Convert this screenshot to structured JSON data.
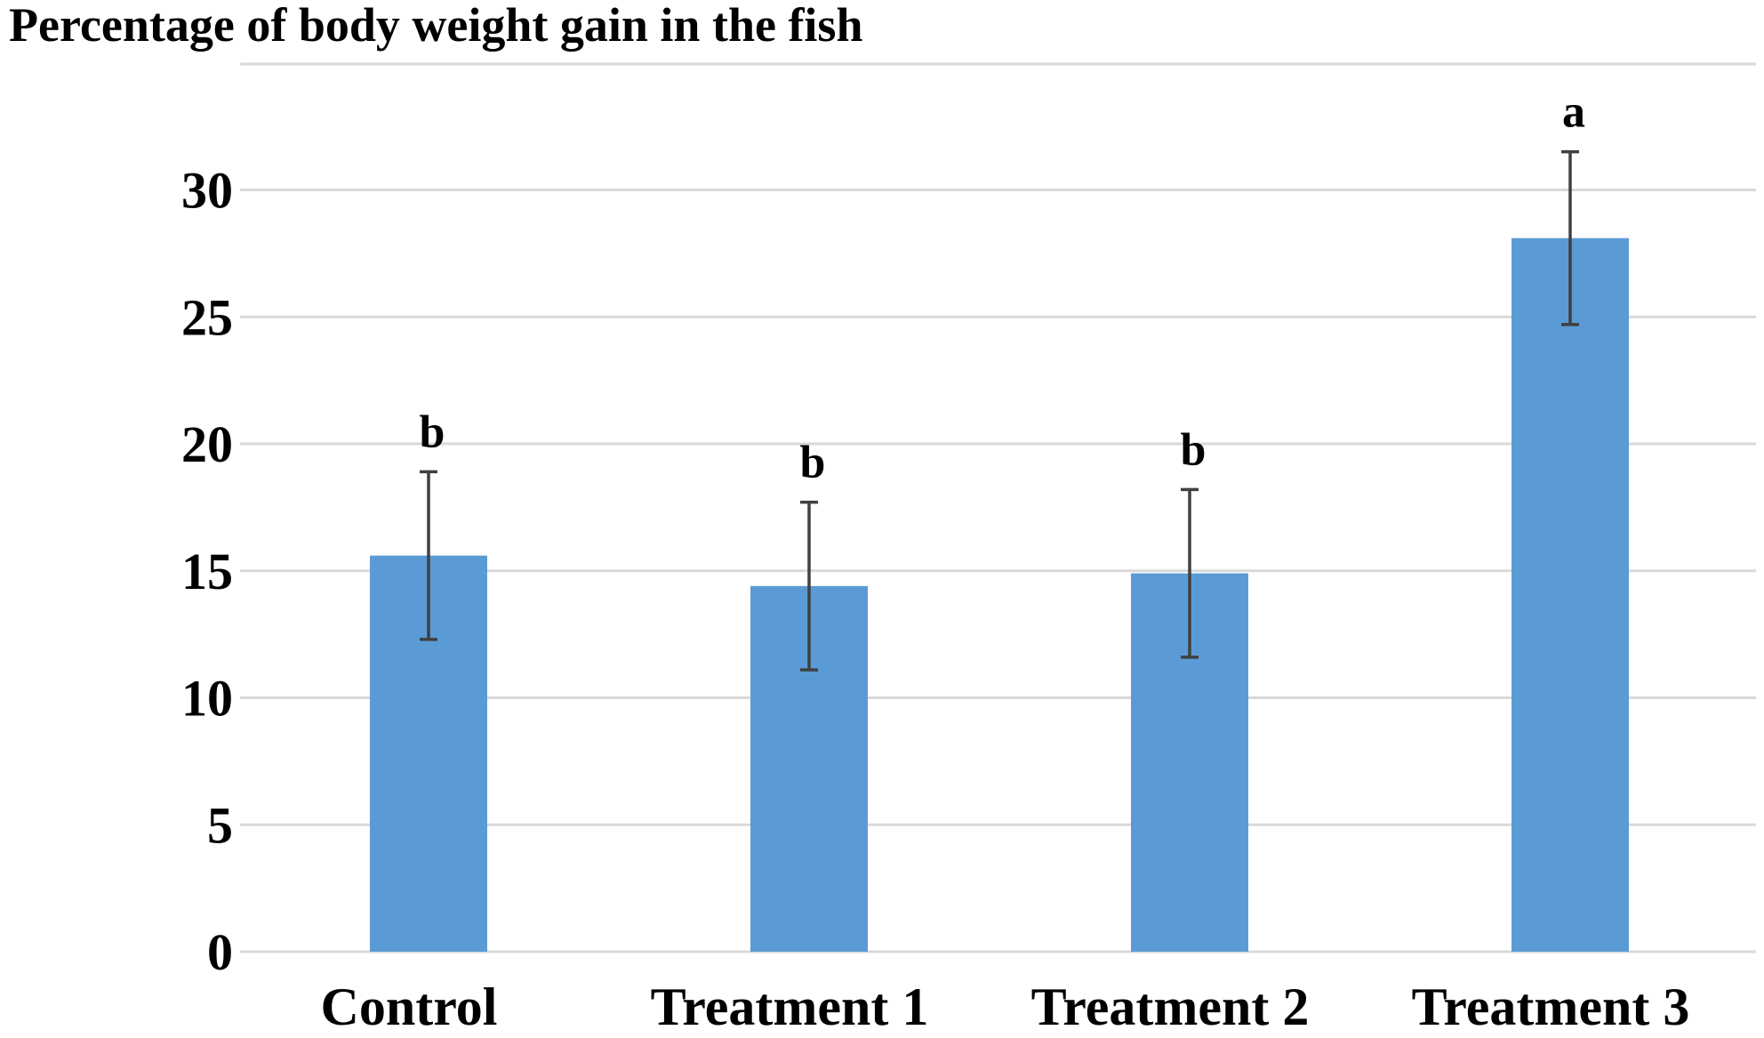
{
  "chart_data": {
    "type": "bar",
    "title": "Percentage of body weight gain in the fish",
    "xlabel": "",
    "ylabel": "",
    "categories": [
      "Control",
      "Treatment 1",
      "Treatment 2",
      "Treatment 3"
    ],
    "values": [
      15.6,
      14.4,
      14.9,
      28.1
    ],
    "error": [
      3.3,
      3.3,
      3.3,
      3.4
    ],
    "significance_labels": [
      "b",
      "b",
      "b",
      "a"
    ],
    "ylim": [
      0,
      30
    ],
    "yticks": [
      "0",
      "5",
      "10",
      "15",
      "20",
      "25",
      "30"
    ],
    "grid": true,
    "legend": "none",
    "colors": {
      "bar": "#5b9bd5",
      "error_bar": "#404040",
      "grid": "#d9d9d9"
    }
  }
}
